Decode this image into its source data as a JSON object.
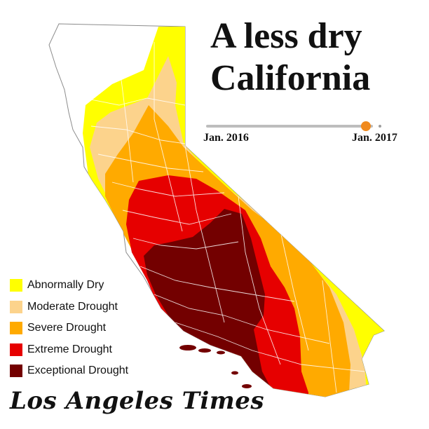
{
  "title_line1": "A less dry",
  "title_line2": "California",
  "timeline": {
    "start_label": "Jan. 2016",
    "end_label": "Jan. 2017",
    "position": 0.96,
    "marker_color": "#f08a1e"
  },
  "legend": [
    {
      "label": "Abnormally Dry",
      "color": "#ffff00"
    },
    {
      "label": "Moderate Drought",
      "color": "#fcd38c"
    },
    {
      "label": "Severe Drought",
      "color": "#ffaa00"
    },
    {
      "label": "Extreme Drought",
      "color": "#e60000"
    },
    {
      "label": "Exceptional Drought",
      "color": "#730000"
    }
  ],
  "no_drought_color": "#ffffff",
  "logo_text": "Los Angeles Times"
}
